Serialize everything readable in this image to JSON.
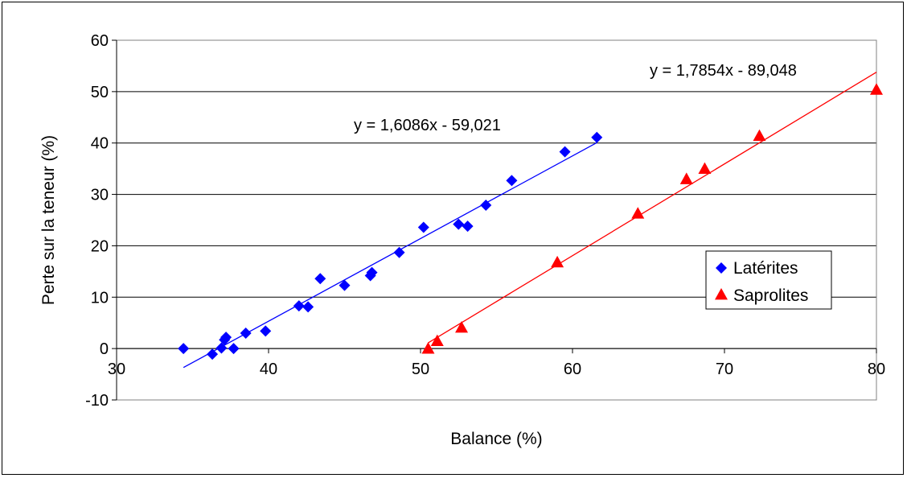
{
  "chart_data": {
    "type": "scatter",
    "title": "",
    "xlabel": "Balance (%)",
    "ylabel": "Perte sur la teneur (%)",
    "xlim": [
      30,
      80
    ],
    "ylim": [
      -10,
      60
    ],
    "xticks": [
      30,
      40,
      50,
      60,
      70,
      80
    ],
    "yticks": [
      -10,
      0,
      10,
      20,
      30,
      40,
      50,
      60
    ],
    "grid": "horizontal",
    "legend_position": "right",
    "series": [
      {
        "name": "Latérites",
        "marker": "diamond",
        "color": "#0000ff",
        "points": [
          [
            34.4,
            0.0
          ],
          [
            36.3,
            -1.1
          ],
          [
            36.9,
            0.1
          ],
          [
            37.1,
            1.7
          ],
          [
            37.2,
            2.2
          ],
          [
            37.7,
            0.0
          ],
          [
            38.5,
            3.0
          ],
          [
            39.8,
            3.4
          ],
          [
            42.0,
            8.3
          ],
          [
            42.6,
            8.1
          ],
          [
            43.4,
            13.6
          ],
          [
            45.0,
            12.3
          ],
          [
            46.7,
            14.2
          ],
          [
            46.8,
            14.8
          ],
          [
            48.6,
            18.7
          ],
          [
            50.2,
            23.6
          ],
          [
            52.5,
            24.2
          ],
          [
            53.1,
            23.8
          ],
          [
            54.3,
            27.9
          ],
          [
            56.0,
            32.7
          ],
          [
            59.5,
            38.3
          ],
          [
            61.6,
            41.1
          ]
        ],
        "trendline": {
          "equation": "y = 1,6086x - 59,021",
          "slope": 1.6086,
          "intercept": -59.021,
          "x_range": [
            34.4,
            61.6
          ]
        }
      },
      {
        "name": "Saprolites",
        "marker": "triangle",
        "color": "#ff0000",
        "points": [
          [
            50.5,
            0.0
          ],
          [
            51.1,
            1.5
          ],
          [
            52.7,
            4.1
          ],
          [
            59.0,
            16.8
          ],
          [
            64.3,
            26.3
          ],
          [
            67.5,
            33.0
          ],
          [
            68.7,
            35.0
          ],
          [
            72.3,
            41.4
          ],
          [
            80.0,
            50.4
          ]
        ],
        "trendline": {
          "equation": "y = 1,7854x - 89,048",
          "slope": 1.7854,
          "intercept": -89.048,
          "x_range": [
            50.5,
            80.0
          ]
        }
      }
    ]
  }
}
